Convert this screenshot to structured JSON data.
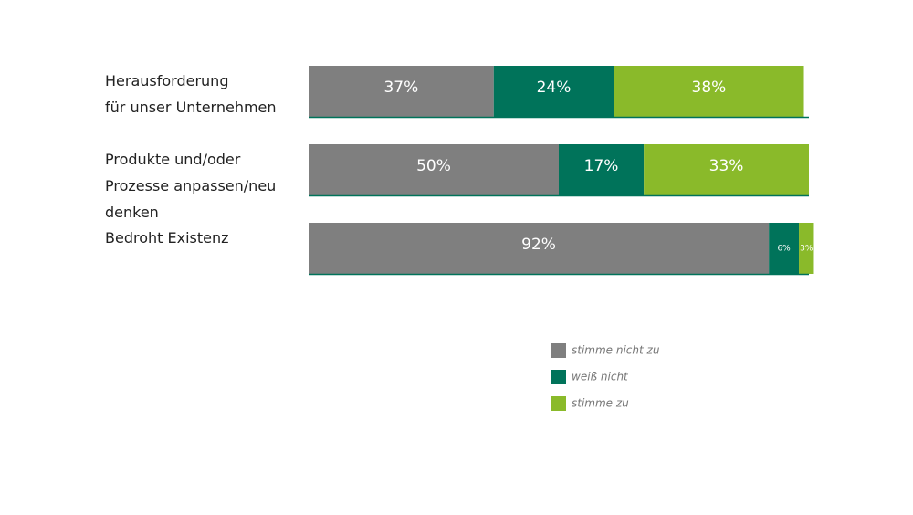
{
  "chart_data": {
    "type": "stacked-bar",
    "categories": [
      "Herausforderung\nfür unser Unternehmen",
      "Produkte und/oder\nProzesse anpassen/neu\ndenken",
      "Bedroht Existenz"
    ],
    "series": [
      {
        "name": "stimme nicht zu",
        "color": "#7f7f7f",
        "values": [
          37,
          50,
          92
        ],
        "value_labels": [
          "37%",
          "50%",
          "92%"
        ]
      },
      {
        "name": "weiß nicht",
        "color": "#00735a",
        "values": [
          24,
          17,
          6
        ],
        "value_labels": [
          "24%",
          "17%",
          "6%"
        ]
      },
      {
        "name": "stimme zu",
        "color": "#8aba2a",
        "values": [
          38,
          33,
          3
        ],
        "value_labels": [
          "38%",
          "33%",
          "3%"
        ]
      }
    ],
    "xlim": [
      0,
      100
    ]
  }
}
